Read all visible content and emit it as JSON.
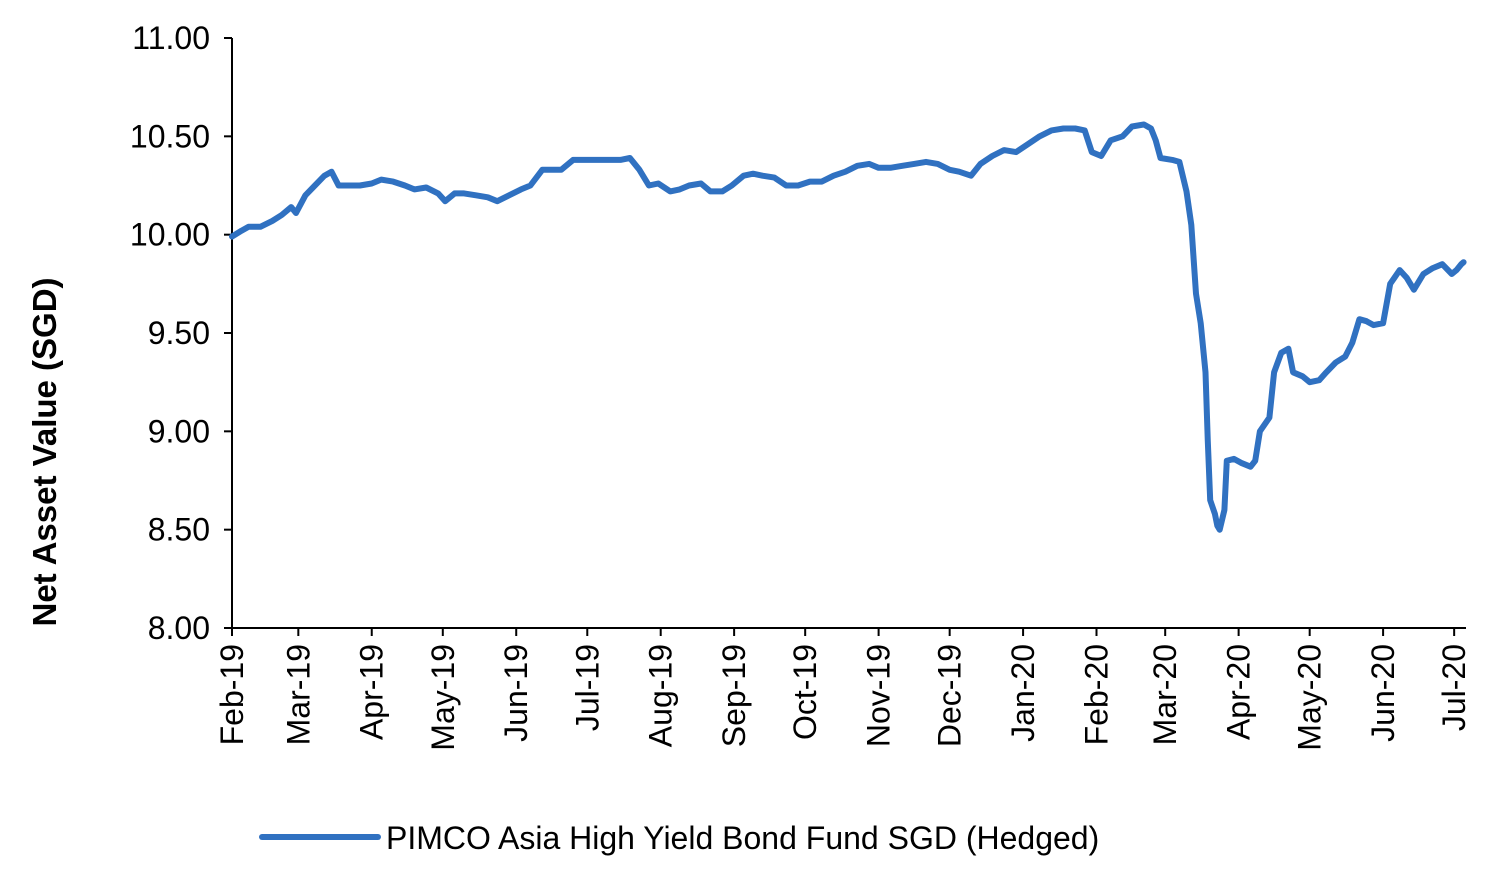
{
  "chart_data": {
    "type": "line",
    "title": "",
    "xlabel": "",
    "ylabel": "Net Asset Value (SGD)",
    "ylim": [
      8.0,
      11.0
    ],
    "y_ticks": [
      "8.00",
      "8.50",
      "9.00",
      "9.50",
      "10.00",
      "10.50",
      "11.00"
    ],
    "x_ticks": [
      "Feb-19",
      "Mar-19",
      "Apr-19",
      "May-19",
      "Jun-19",
      "Jul-19",
      "Aug-19",
      "Sep-19",
      "Oct-19",
      "Nov-19",
      "Dec-19",
      "Jan-20",
      "Feb-20",
      "Mar-20",
      "Apr-20",
      "May-20",
      "Jun-20",
      "Jul-20"
    ],
    "xlim": [
      "2019-02-01",
      "2020-07-06"
    ],
    "grid": false,
    "legend_position": "bottom",
    "series": [
      {
        "name": "PIMCO Asia High Yield Bond Fund SGD (Hedged)",
        "color": "#3071C1",
        "points": [
          [
            "2019-02-01",
            9.99
          ],
          [
            "2019-02-05",
            10.02
          ],
          [
            "2019-02-08",
            10.04
          ],
          [
            "2019-02-13",
            10.04
          ],
          [
            "2019-02-18",
            10.07
          ],
          [
            "2019-02-22",
            10.1
          ],
          [
            "2019-02-26",
            10.14
          ],
          [
            "2019-02-28",
            10.11
          ],
          [
            "2019-03-04",
            10.2
          ],
          [
            "2019-03-08",
            10.25
          ],
          [
            "2019-03-12",
            10.3
          ],
          [
            "2019-03-15",
            10.32
          ],
          [
            "2019-03-18",
            10.25
          ],
          [
            "2019-03-22",
            10.25
          ],
          [
            "2019-03-27",
            10.25
          ],
          [
            "2019-04-01",
            10.26
          ],
          [
            "2019-04-05",
            10.28
          ],
          [
            "2019-04-10",
            10.27
          ],
          [
            "2019-04-15",
            10.25
          ],
          [
            "2019-04-19",
            10.23
          ],
          [
            "2019-04-24",
            10.24
          ],
          [
            "2019-04-29",
            10.21
          ],
          [
            "2019-05-02",
            10.17
          ],
          [
            "2019-05-06",
            10.21
          ],
          [
            "2019-05-10",
            10.21
          ],
          [
            "2019-05-15",
            10.2
          ],
          [
            "2019-05-20",
            10.19
          ],
          [
            "2019-05-24",
            10.17
          ],
          [
            "2019-05-29",
            10.2
          ],
          [
            "2019-06-03",
            10.23
          ],
          [
            "2019-06-07",
            10.25
          ],
          [
            "2019-06-12",
            10.33
          ],
          [
            "2019-06-17",
            10.33
          ],
          [
            "2019-06-20",
            10.33
          ],
          [
            "2019-06-25",
            10.38
          ],
          [
            "2019-06-30",
            10.38
          ],
          [
            "2019-07-05",
            10.38
          ],
          [
            "2019-07-10",
            10.38
          ],
          [
            "2019-07-15",
            10.38
          ],
          [
            "2019-07-19",
            10.39
          ],
          [
            "2019-07-23",
            10.33
          ],
          [
            "2019-07-27",
            10.25
          ],
          [
            "2019-07-31",
            10.26
          ],
          [
            "2019-08-05",
            10.22
          ],
          [
            "2019-08-09",
            10.23
          ],
          [
            "2019-08-13",
            10.25
          ],
          [
            "2019-08-18",
            10.26
          ],
          [
            "2019-08-22",
            10.22
          ],
          [
            "2019-08-27",
            10.22
          ],
          [
            "2019-08-31",
            10.25
          ],
          [
            "2019-09-05",
            10.3
          ],
          [
            "2019-09-09",
            10.31
          ],
          [
            "2019-09-13",
            10.3
          ],
          [
            "2019-09-18",
            10.29
          ],
          [
            "2019-09-23",
            10.25
          ],
          [
            "2019-09-28",
            10.25
          ],
          [
            "2019-10-03",
            10.27
          ],
          [
            "2019-10-08",
            10.27
          ],
          [
            "2019-10-13",
            10.3
          ],
          [
            "2019-10-18",
            10.32
          ],
          [
            "2019-10-23",
            10.35
          ],
          [
            "2019-10-28",
            10.36
          ],
          [
            "2019-11-01",
            10.34
          ],
          [
            "2019-11-06",
            10.34
          ],
          [
            "2019-11-11",
            10.35
          ],
          [
            "2019-11-16",
            10.36
          ],
          [
            "2019-11-21",
            10.37
          ],
          [
            "2019-11-26",
            10.36
          ],
          [
            "2019-12-01",
            10.33
          ],
          [
            "2019-12-05",
            10.32
          ],
          [
            "2019-12-10",
            10.3
          ],
          [
            "2019-12-14",
            10.36
          ],
          [
            "2019-12-19",
            10.4
          ],
          [
            "2019-12-24",
            10.43
          ],
          [
            "2019-12-29",
            10.42
          ],
          [
            "2020-01-03",
            10.46
          ],
          [
            "2020-01-08",
            10.5
          ],
          [
            "2020-01-13",
            10.53
          ],
          [
            "2020-01-18",
            10.54
          ],
          [
            "2020-01-23",
            10.54
          ],
          [
            "2020-01-27",
            10.53
          ],
          [
            "2020-01-30",
            10.42
          ],
          [
            "2020-02-03",
            10.4
          ],
          [
            "2020-02-07",
            10.48
          ],
          [
            "2020-02-12",
            10.5
          ],
          [
            "2020-02-16",
            10.55
          ],
          [
            "2020-02-21",
            10.56
          ],
          [
            "2020-02-24",
            10.54
          ],
          [
            "2020-02-26",
            10.48
          ],
          [
            "2020-02-28",
            10.39
          ],
          [
            "2020-03-04",
            10.38
          ],
          [
            "2020-03-07",
            10.37
          ],
          [
            "2020-03-10",
            10.22
          ],
          [
            "2020-03-12",
            10.05
          ],
          [
            "2020-03-14",
            9.7
          ],
          [
            "2020-03-16",
            9.55
          ],
          [
            "2020-03-18",
            9.3
          ],
          [
            "2020-03-19",
            8.95
          ],
          [
            "2020-03-20",
            8.65
          ],
          [
            "2020-03-22",
            8.58
          ],
          [
            "2020-03-23",
            8.52
          ],
          [
            "2020-03-24",
            8.5
          ],
          [
            "2020-03-26",
            8.6
          ],
          [
            "2020-03-27",
            8.85
          ],
          [
            "2020-03-30",
            8.86
          ],
          [
            "2020-04-02",
            8.84
          ],
          [
            "2020-04-06",
            8.82
          ],
          [
            "2020-04-08",
            8.85
          ],
          [
            "2020-04-10",
            9.0
          ],
          [
            "2020-04-14",
            9.07
          ],
          [
            "2020-04-16",
            9.3
          ],
          [
            "2020-04-19",
            9.4
          ],
          [
            "2020-04-22",
            9.42
          ],
          [
            "2020-04-24",
            9.3
          ],
          [
            "2020-04-28",
            9.28
          ],
          [
            "2020-05-01",
            9.25
          ],
          [
            "2020-05-05",
            9.26
          ],
          [
            "2020-05-08",
            9.3
          ],
          [
            "2020-05-12",
            9.35
          ],
          [
            "2020-05-16",
            9.38
          ],
          [
            "2020-05-19",
            9.45
          ],
          [
            "2020-05-22",
            9.57
          ],
          [
            "2020-05-25",
            9.56
          ],
          [
            "2020-05-28",
            9.54
          ],
          [
            "2020-06-01",
            9.55
          ],
          [
            "2020-06-04",
            9.75
          ],
          [
            "2020-06-08",
            9.82
          ],
          [
            "2020-06-11",
            9.78
          ],
          [
            "2020-06-14",
            9.72
          ],
          [
            "2020-06-18",
            9.8
          ],
          [
            "2020-06-22",
            9.83
          ],
          [
            "2020-06-26",
            9.85
          ],
          [
            "2020-06-30",
            9.8
          ],
          [
            "2020-07-02",
            9.82
          ],
          [
            "2020-07-04",
            9.85
          ],
          [
            "2020-07-05",
            9.86
          ]
        ]
      }
    ]
  }
}
